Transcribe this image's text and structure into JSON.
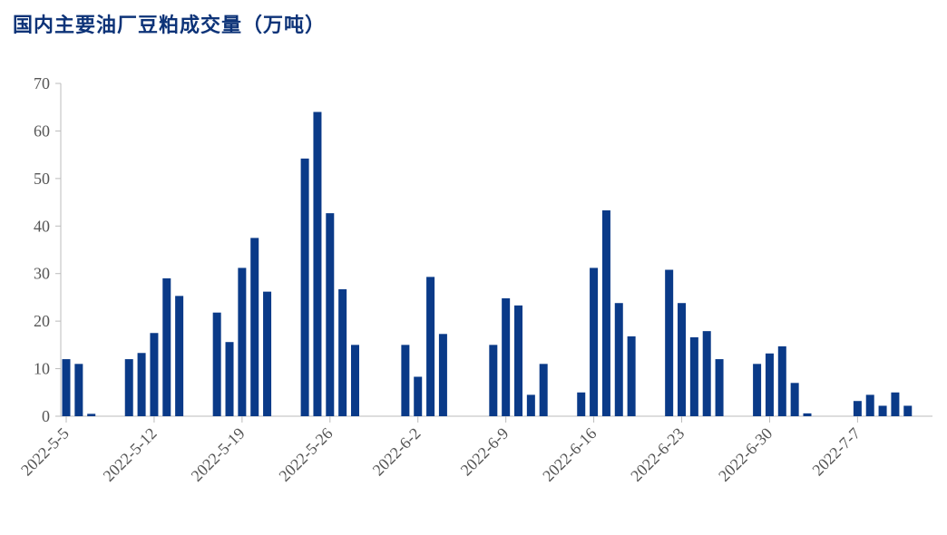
{
  "title": "国内主要油厂豆粕成交量（万吨）",
  "colors": {
    "bar": "#0a3a88",
    "title": "#0d3378",
    "axis": "#bbbbbb",
    "tick_text": "#555555"
  },
  "chart_data": {
    "type": "bar",
    "title": "国内主要油厂豆粕成交量（万吨）",
    "xlabel": "",
    "ylabel": "",
    "ylim": [
      0,
      70
    ],
    "yticks": [
      0,
      10,
      20,
      30,
      40,
      50,
      60,
      70
    ],
    "x_ticks": [
      "2022-5-5",
      "2022-5-12",
      "2022-5-19",
      "2022-5-26",
      "2022-6-2",
      "2022-6-9",
      "2022-6-16",
      "2022-6-23",
      "2022-6-30",
      "2022-7-7"
    ],
    "grid": false,
    "legend": "none",
    "categories": [
      "2022-5-5",
      "2022-5-6",
      "2022-5-7",
      "2022-5-8",
      "2022-5-9",
      "2022-5-10",
      "2022-5-11",
      "2022-5-12",
      "2022-5-13",
      "2022-5-14",
      "2022-5-15",
      "2022-5-16",
      "2022-5-17",
      "2022-5-18",
      "2022-5-19",
      "2022-5-20",
      "2022-5-21",
      "2022-5-22",
      "2022-5-23",
      "2022-5-24",
      "2022-5-25",
      "2022-5-26",
      "2022-5-27",
      "2022-5-28",
      "2022-5-29",
      "2022-5-30",
      "2022-5-31",
      "2022-6-1",
      "2022-6-2",
      "2022-6-3",
      "2022-6-4",
      "2022-6-5",
      "2022-6-6",
      "2022-6-7",
      "2022-6-8",
      "2022-6-9",
      "2022-6-10",
      "2022-6-11",
      "2022-6-12",
      "2022-6-13",
      "2022-6-14",
      "2022-6-15",
      "2022-6-16",
      "2022-6-17",
      "2022-6-18",
      "2022-6-19",
      "2022-6-20",
      "2022-6-21",
      "2022-6-22",
      "2022-6-23",
      "2022-6-24",
      "2022-6-25",
      "2022-6-26",
      "2022-6-27",
      "2022-6-28",
      "2022-6-29",
      "2022-6-30",
      "2022-7-1",
      "2022-7-2",
      "2022-7-3",
      "2022-7-4",
      "2022-7-5",
      "2022-7-6",
      "2022-7-7",
      "2022-7-8",
      "2022-7-9",
      "2022-7-10",
      "2022-7-11",
      "2022-7-12",
      "2022-7-13"
    ],
    "values": [
      12,
      11,
      0.5,
      null,
      null,
      12,
      13.3,
      17.5,
      29,
      25.3,
      null,
      null,
      21.8,
      15.6,
      31.2,
      37.5,
      26.2,
      null,
      null,
      54.2,
      64,
      42.7,
      26.7,
      15,
      null,
      null,
      null,
      15,
      8.3,
      29.3,
      17.3,
      null,
      null,
      null,
      15,
      24.8,
      23.3,
      4.5,
      11,
      null,
      null,
      5,
      31.2,
      43.3,
      23.8,
      16.8,
      null,
      null,
      30.8,
      23.8,
      16.6,
      17.9,
      12,
      null,
      null,
      11,
      13.2,
      14.7,
      7,
      0.6,
      null,
      null,
      null,
      3.2,
      4.5,
      2.2,
      5,
      2.2,
      null,
      null
    ]
  }
}
